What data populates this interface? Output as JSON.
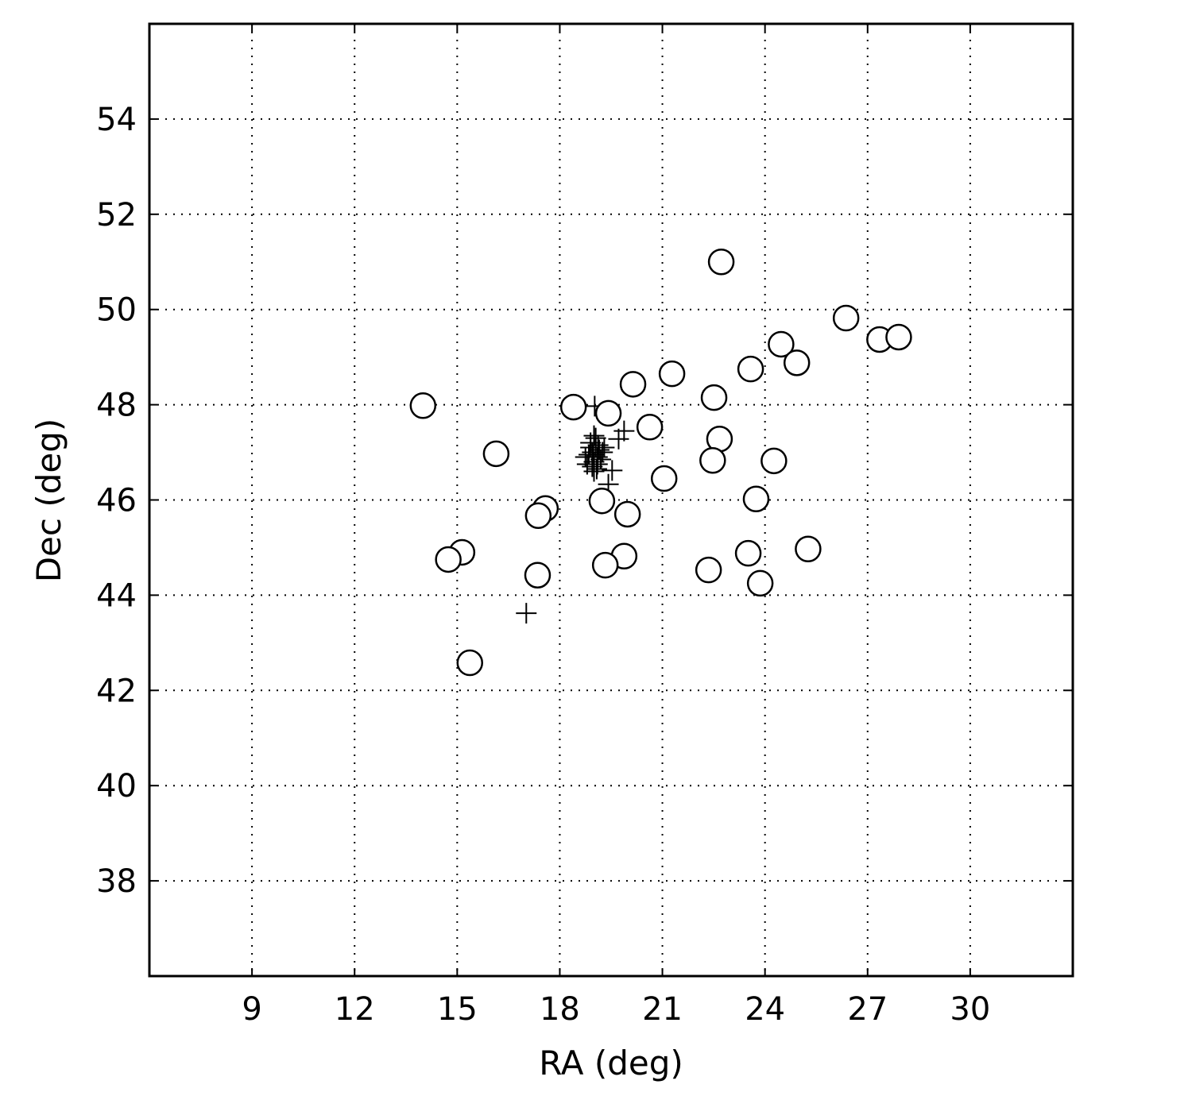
{
  "chart_data": {
    "type": "scatter",
    "x_label": "RA (deg)",
    "y_label": "Dec (deg)",
    "xlim": [
      6,
      33
    ],
    "ylim": [
      36,
      56
    ],
    "xticks": [
      9,
      12,
      15,
      18,
      21,
      24,
      27,
      30
    ],
    "yticks": [
      38,
      40,
      42,
      44,
      46,
      48,
      50,
      52,
      54
    ],
    "grid": true,
    "series": [
      {
        "marker": "+",
        "color": "#000000",
        "x": [
          17.02,
          19.88,
          19.72,
          19.53,
          19.42,
          19.02,
          18.95,
          19.05,
          19.1,
          18.85,
          18.9,
          19.0,
          19.15,
          19.2,
          18.8,
          18.95,
          19.05,
          19.1,
          18.9,
          19.0,
          19.25,
          18.75,
          19.3,
          19.0,
          19.08,
          18.98,
          19.12
        ],
        "y": [
          43.62,
          47.45,
          47.28,
          46.62,
          46.33,
          47.97,
          47.0,
          47.1,
          46.9,
          46.95,
          47.2,
          46.8,
          47.05,
          46.85,
          46.75,
          46.7,
          47.3,
          46.75,
          47.1,
          46.6,
          47.0,
          46.9,
          47.1,
          47.35,
          46.65,
          46.95,
          47.15
        ]
      },
      {
        "marker": "o",
        "color": "#000000",
        "x": [
          22.72,
          26.37,
          27.35,
          27.91,
          24.47,
          24.93,
          23.58,
          21.28,
          20.14,
          22.51,
          14.0,
          18.4,
          19.42,
          20.63,
          22.67,
          16.14,
          22.47,
          24.26,
          21.05,
          23.74,
          19.23,
          17.58,
          17.37,
          19.98,
          25.26,
          15.14,
          14.74,
          23.51,
          19.88,
          19.33,
          17.35,
          22.35,
          23.86,
          15.37
        ],
        "y": [
          51.0,
          49.82,
          49.37,
          49.42,
          49.27,
          48.88,
          48.75,
          48.65,
          48.43,
          48.15,
          47.98,
          47.95,
          47.82,
          47.53,
          47.28,
          46.97,
          46.83,
          46.82,
          46.45,
          46.02,
          45.98,
          45.82,
          45.67,
          45.7,
          44.97,
          44.9,
          44.75,
          44.88,
          44.82,
          44.63,
          44.42,
          44.53,
          44.25,
          42.58
        ]
      }
    ]
  }
}
